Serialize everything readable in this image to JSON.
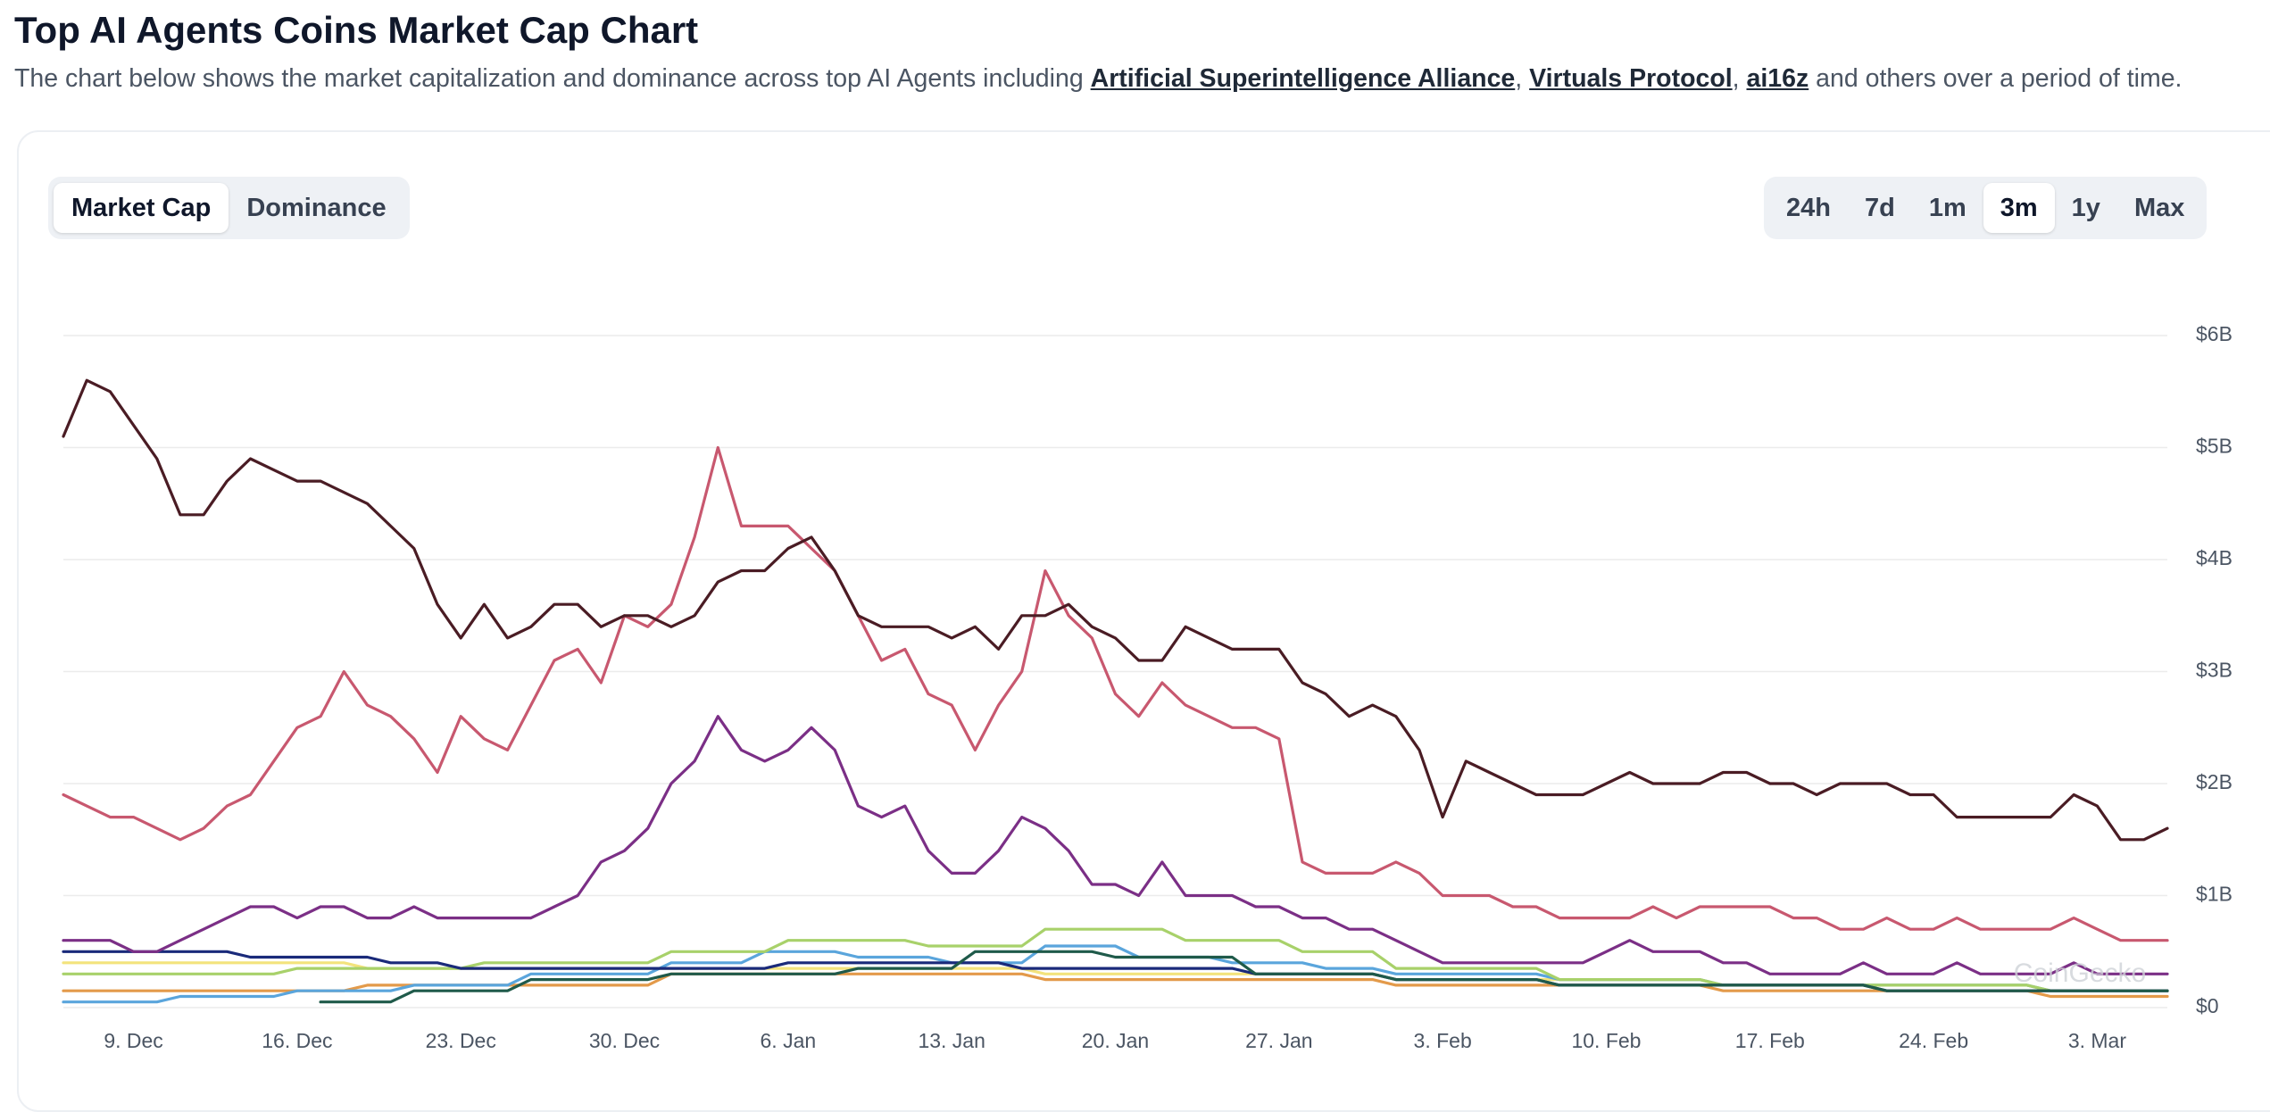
{
  "header": {
    "title": "Top AI Agents Coins Market Cap Chart",
    "description": [
      "The chart below shows the market capitalization and dominance across top AI Agents including ",
      "Artificial Superintelligence Alliance",
      ", ",
      "Virtuals Protocol",
      ", ",
      "ai16z",
      " and others over a period of time."
    ]
  },
  "tabs": [
    "Market Cap",
    "Dominance"
  ],
  "ranges": [
    "24h",
    "7d",
    "1m",
    "3m",
    "1y",
    "Max"
  ],
  "chart_data": {
    "type": "line",
    "watermark": "CoinGecko",
    "grid": true,
    "categories": [
      null,
      null,
      null,
      "9. Dec",
      null,
      null,
      null,
      null,
      null,
      null,
      "16. Dec",
      null,
      null,
      null,
      null,
      null,
      null,
      "23. Dec",
      null,
      null,
      null,
      null,
      null,
      null,
      "30. Dec",
      null,
      null,
      null,
      null,
      null,
      null,
      "6. Jan",
      null,
      null,
      null,
      null,
      null,
      null,
      "13. Jan",
      null,
      null,
      null,
      null,
      null,
      null,
      "20. Jan",
      null,
      null,
      null,
      null,
      null,
      null,
      "27. Jan",
      null,
      null,
      null,
      null,
      null,
      null,
      "3. Feb",
      null,
      null,
      null,
      null,
      null,
      null,
      "10. Feb",
      null,
      null,
      null,
      null,
      null,
      null,
      "17. Feb",
      null,
      null,
      null,
      null,
      null,
      null,
      "24. Feb",
      null,
      null,
      null,
      null,
      null,
      null,
      "3. Mar",
      null,
      null,
      null
    ],
    "ylim": [
      0,
      6
    ],
    "yticks": [
      {
        "value": 0,
        "label": "$0"
      },
      {
        "value": 1,
        "label": "$1B"
      },
      {
        "value": 2,
        "label": "$2B"
      },
      {
        "value": 3,
        "label": "$3B"
      },
      {
        "value": 4,
        "label": "$4B"
      },
      {
        "value": 5,
        "label": "$5B"
      },
      {
        "value": 6,
        "label": "$6B"
      }
    ],
    "series": [
      {
        "color": "#e39a4a",
        "values": [
          0.15,
          0.15,
          0.15,
          0.15,
          0.15,
          0.15,
          0.15,
          0.15,
          0.15,
          0.15,
          0.15,
          0.15,
          0.15,
          0.2,
          0.2,
          0.2,
          0.2,
          0.2,
          0.2,
          0.2,
          0.2,
          0.2,
          0.2,
          0.2,
          0.2,
          0.2,
          0.3,
          0.3,
          0.3,
          0.3,
          0.3,
          0.3,
          0.3,
          0.3,
          0.3,
          0.3,
          0.3,
          0.3,
          0.3,
          0.3,
          0.3,
          0.3,
          0.25,
          0.25,
          0.25,
          0.25,
          0.25,
          0.25,
          0.25,
          0.25,
          0.25,
          0.25,
          0.25,
          0.25,
          0.25,
          0.25,
          0.25,
          0.2,
          0.2,
          0.2,
          0.2,
          0.2,
          0.2,
          0.2,
          0.2,
          0.2,
          0.2,
          0.2,
          0.2,
          0.2,
          0.2,
          0.15,
          0.15,
          0.15,
          0.15,
          0.15,
          0.15,
          0.15,
          0.15,
          0.15,
          0.15,
          0.15,
          0.15,
          0.15,
          0.15,
          0.1,
          0.1,
          0.1,
          0.1,
          0.1,
          0.1
        ]
      },
      {
        "color": "#f3e37c",
        "values": [
          0.4,
          0.4,
          0.4,
          0.4,
          0.4,
          0.4,
          0.4,
          0.4,
          0.4,
          0.4,
          0.4,
          0.4,
          0.4,
          0.35,
          0.35,
          0.35,
          0.35,
          0.35,
          0.35,
          0.35,
          0.35,
          0.35,
          0.35,
          0.35,
          0.35,
          0.35,
          0.35,
          0.35,
          0.35,
          0.35,
          0.35,
          0.35,
          0.35,
          0.35,
          0.35,
          0.35,
          0.35,
          0.35,
          0.35,
          0.35,
          0.35,
          0.35,
          0.3,
          0.3,
          0.3,
          0.3,
          0.3,
          0.3,
          0.3,
          0.3,
          0.3,
          0.3,
          0.3,
          0.3,
          0.3,
          0.3,
          0.3,
          0.25,
          0.25,
          0.25,
          0.25,
          0.25,
          0.25,
          0.25,
          0.25,
          0.25,
          0.25,
          0.25,
          0.25,
          0.25,
          0.25,
          0.2,
          0.2,
          0.2,
          0.2,
          0.2,
          0.2,
          0.2,
          0.2,
          0.2,
          0.2,
          0.2,
          0.2,
          0.2,
          0.2,
          0.15,
          0.15,
          0.15,
          0.15,
          0.15,
          0.15
        ]
      },
      {
        "color": "#5aa5dc",
        "values": [
          0.05,
          0.05,
          0.05,
          0.05,
          0.05,
          0.1,
          0.1,
          0.1,
          0.1,
          0.1,
          0.15,
          0.15,
          0.15,
          0.15,
          0.15,
          0.2,
          0.2,
          0.2,
          0.2,
          0.2,
          0.3,
          0.3,
          0.3,
          0.3,
          0.3,
          0.3,
          0.4,
          0.4,
          0.4,
          0.4,
          0.5,
          0.5,
          0.5,
          0.5,
          0.45,
          0.45,
          0.45,
          0.45,
          0.4,
          0.4,
          0.4,
          0.4,
          0.55,
          0.55,
          0.55,
          0.55,
          0.45,
          0.45,
          0.45,
          0.45,
          0.4,
          0.4,
          0.4,
          0.4,
          0.35,
          0.35,
          0.35,
          0.3,
          0.3,
          0.3,
          0.3,
          0.3,
          0.3,
          0.3,
          0.25,
          0.25,
          0.25,
          0.25,
          0.25,
          0.25,
          0.25,
          0.2,
          0.2,
          0.2,
          0.2,
          0.2,
          0.2,
          0.2,
          0.2,
          0.2,
          0.2,
          0.2,
          0.2,
          0.2,
          0.2,
          0.15,
          0.15,
          0.15,
          0.15,
          0.15,
          0.15
        ]
      },
      {
        "color": "#a8d16a",
        "values": [
          0.3,
          0.3,
          0.3,
          0.3,
          0.3,
          0.3,
          0.3,
          0.3,
          0.3,
          0.3,
          0.35,
          0.35,
          0.35,
          0.35,
          0.35,
          0.35,
          0.35,
          0.35,
          0.4,
          0.4,
          0.4,
          0.4,
          0.4,
          0.4,
          0.4,
          0.4,
          0.5,
          0.5,
          0.5,
          0.5,
          0.5,
          0.6,
          0.6,
          0.6,
          0.6,
          0.6,
          0.6,
          0.55,
          0.55,
          0.55,
          0.55,
          0.55,
          0.7,
          0.7,
          0.7,
          0.7,
          0.7,
          0.7,
          0.6,
          0.6,
          0.6,
          0.6,
          0.6,
          0.5,
          0.5,
          0.5,
          0.5,
          0.35,
          0.35,
          0.35,
          0.35,
          0.35,
          0.35,
          0.35,
          0.25,
          0.25,
          0.25,
          0.25,
          0.25,
          0.25,
          0.25,
          0.2,
          0.2,
          0.2,
          0.2,
          0.2,
          0.2,
          0.2,
          0.2,
          0.2,
          0.2,
          0.2,
          0.2,
          0.2,
          0.2,
          0.15,
          0.15,
          0.15,
          0.15,
          0.15,
          0.15
        ]
      },
      {
        "color": "#1a2a7a",
        "values": [
          0.5,
          0.5,
          0.5,
          0.5,
          0.5,
          0.5,
          0.5,
          0.5,
          0.45,
          0.45,
          0.45,
          0.45,
          0.45,
          0.45,
          0.4,
          0.4,
          0.4,
          0.35,
          0.35,
          0.35,
          0.35,
          0.35,
          0.35,
          0.35,
          0.35,
          0.35,
          0.35,
          0.35,
          0.35,
          0.35,
          0.35,
          0.4,
          0.4,
          0.4,
          0.4,
          0.4,
          0.4,
          0.4,
          0.4,
          0.4,
          0.4,
          0.35,
          0.35,
          0.35,
          0.35,
          0.35,
          0.35,
          0.35,
          0.35,
          0.35,
          0.35,
          0.3,
          0.3,
          0.3,
          0.3,
          0.3,
          0.3,
          0.25,
          0.25,
          0.25,
          0.25,
          0.25,
          0.25,
          0.25,
          0.2,
          0.2,
          0.2,
          0.2,
          0.2,
          0.2,
          0.2,
          0.2,
          0.2,
          0.2,
          0.2,
          0.2,
          0.2,
          0.2,
          0.15,
          0.15,
          0.15,
          0.15,
          0.15,
          0.15,
          0.15,
          0.15,
          0.15,
          0.15,
          0.15,
          0.15,
          0.15
        ]
      },
      {
        "color": "#1f5a4a",
        "values": [
          null,
          null,
          null,
          null,
          null,
          null,
          null,
          null,
          null,
          null,
          null,
          0.05,
          0.05,
          0.05,
          0.05,
          0.15,
          0.15,
          0.15,
          0.15,
          0.15,
          0.25,
          0.25,
          0.25,
          0.25,
          0.25,
          0.25,
          0.3,
          0.3,
          0.3,
          0.3,
          0.3,
          0.3,
          0.3,
          0.3,
          0.35,
          0.35,
          0.35,
          0.35,
          0.35,
          0.5,
          0.5,
          0.5,
          0.5,
          0.5,
          0.5,
          0.45,
          0.45,
          0.45,
          0.45,
          0.45,
          0.45,
          0.3,
          0.3,
          0.3,
          0.3,
          0.3,
          0.3,
          0.25,
          0.25,
          0.25,
          0.25,
          0.25,
          0.25,
          0.25,
          0.2,
          0.2,
          0.2,
          0.2,
          0.2,
          0.2,
          0.2,
          0.2,
          0.2,
          0.2,
          0.2,
          0.2,
          0.2,
          0.2,
          0.15,
          0.15,
          0.15,
          0.15,
          0.15,
          0.15,
          0.15,
          0.15,
          0.15,
          0.15,
          0.15,
          0.15,
          0.15
        ]
      },
      {
        "color": "#7b2f86",
        "values": [
          0.6,
          0.6,
          0.6,
          0.5,
          0.5,
          0.6,
          0.7,
          0.8,
          0.9,
          0.9,
          0.8,
          0.9,
          0.9,
          0.8,
          0.8,
          0.9,
          0.8,
          0.8,
          0.8,
          0.8,
          0.8,
          0.9,
          1.0,
          1.3,
          1.4,
          1.6,
          2.0,
          2.2,
          2.6,
          2.3,
          2.2,
          2.3,
          2.5,
          2.3,
          1.8,
          1.7,
          1.8,
          1.4,
          1.2,
          1.2,
          1.4,
          1.7,
          1.6,
          1.4,
          1.1,
          1.1,
          1.0,
          1.3,
          1.0,
          1.0,
          1.0,
          0.9,
          0.9,
          0.8,
          0.8,
          0.7,
          0.7,
          0.6,
          0.5,
          0.4,
          0.4,
          0.4,
          0.4,
          0.4,
          0.4,
          0.4,
          0.5,
          0.6,
          0.5,
          0.5,
          0.5,
          0.4,
          0.4,
          0.3,
          0.3,
          0.3,
          0.3,
          0.4,
          0.3,
          0.3,
          0.3,
          0.4,
          0.3,
          0.3,
          0.3,
          0.3,
          0.4,
          0.3,
          0.3,
          0.3,
          0.3
        ]
      },
      {
        "color": "#c8586f",
        "values": [
          1.9,
          1.8,
          1.7,
          1.7,
          1.6,
          1.5,
          1.6,
          1.8,
          1.9,
          2.2,
          2.5,
          2.6,
          3.0,
          2.7,
          2.6,
          2.4,
          2.1,
          2.6,
          2.4,
          2.3,
          2.7,
          3.1,
          3.2,
          2.9,
          3.5,
          3.4,
          3.6,
          4.2,
          5.0,
          4.3,
          4.3,
          4.3,
          4.1,
          3.9,
          3.5,
          3.1,
          3.2,
          2.8,
          2.7,
          2.3,
          2.7,
          3.0,
          3.9,
          3.5,
          3.3,
          2.8,
          2.6,
          2.9,
          2.7,
          2.6,
          2.5,
          2.5,
          2.4,
          1.3,
          1.2,
          1.2,
          1.2,
          1.3,
          1.2,
          1.0,
          1.0,
          1.0,
          0.9,
          0.9,
          0.8,
          0.8,
          0.8,
          0.8,
          0.9,
          0.8,
          0.9,
          0.9,
          0.9,
          0.9,
          0.8,
          0.8,
          0.7,
          0.7,
          0.8,
          0.7,
          0.7,
          0.8,
          0.7,
          0.7,
          0.7,
          0.7,
          0.8,
          0.7,
          0.6,
          0.6,
          0.6
        ]
      },
      {
        "color": "#4a1c24",
        "values": [
          5.1,
          5.6,
          5.5,
          5.2,
          4.9,
          4.4,
          4.4,
          4.7,
          4.9,
          4.8,
          4.7,
          4.7,
          4.6,
          4.5,
          4.3,
          4.1,
          3.6,
          3.3,
          3.6,
          3.3,
          3.4,
          3.6,
          3.6,
          3.4,
          3.5,
          3.5,
          3.4,
          3.5,
          3.8,
          3.9,
          3.9,
          4.1,
          4.2,
          3.9,
          3.5,
          3.4,
          3.4,
          3.4,
          3.3,
          3.4,
          3.2,
          3.5,
          3.5,
          3.6,
          3.4,
          3.3,
          3.1,
          3.1,
          3.4,
          3.3,
          3.2,
          3.2,
          3.2,
          2.9,
          2.8,
          2.6,
          2.7,
          2.6,
          2.3,
          1.7,
          2.2,
          2.1,
          2.0,
          1.9,
          1.9,
          1.9,
          2.0,
          2.1,
          2.0,
          2.0,
          2.0,
          2.1,
          2.1,
          2.0,
          2.0,
          1.9,
          2.0,
          2.0,
          2.0,
          1.9,
          1.9,
          1.7,
          1.7,
          1.7,
          1.7,
          1.7,
          1.9,
          1.8,
          1.5,
          1.5,
          1.6
        ]
      }
    ]
  }
}
